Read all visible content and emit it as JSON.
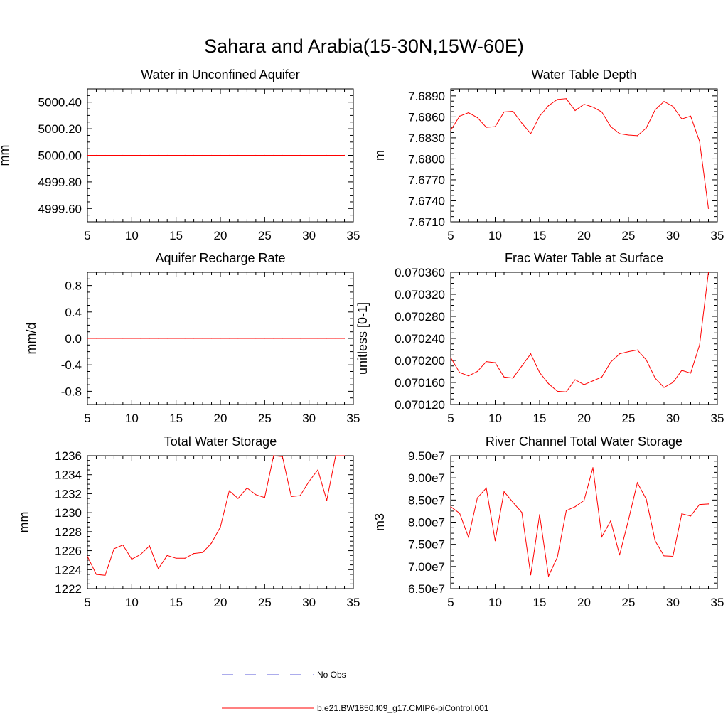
{
  "main_title": "Sahara and Arabia(15-30N,15W-60E)",
  "colors": {
    "series": "#ff0000",
    "obs": "#5a5ad8",
    "axis": "#000000"
  },
  "legend": {
    "obs_label": "No Obs",
    "model_label": "b.e21.BW1850.f09_g17.CMIP6-piControl.001"
  },
  "chart_data": [
    {
      "type": "line",
      "title": "Water in Unconfined Aquifer",
      "ylabel": "mm",
      "xlim": [
        5,
        35
      ],
      "ylim": [
        4999.5,
        5000.5
      ],
      "xticks": [
        5,
        10,
        15,
        20,
        25,
        30,
        35
      ],
      "yticks": [
        4999.6,
        4999.8,
        5000.0,
        5000.2,
        5000.4
      ],
      "ytick_labels": [
        "4999.60",
        "4999.80",
        "5000.00",
        "5000.20",
        "5000.40"
      ],
      "series": [
        {
          "x": [
            5,
            6,
            7,
            8,
            9,
            10,
            11,
            12,
            13,
            14,
            15,
            16,
            17,
            18,
            19,
            20,
            21,
            22,
            23,
            24,
            25,
            26,
            27,
            28,
            29,
            30,
            31,
            32,
            33,
            34
          ],
          "values": [
            5000,
            5000,
            5000,
            5000,
            5000,
            5000,
            5000,
            5000,
            5000,
            5000,
            5000,
            5000,
            5000,
            5000,
            5000,
            5000,
            5000,
            5000,
            5000,
            5000,
            5000,
            5000,
            5000,
            5000,
            5000,
            5000,
            5000,
            5000,
            5000,
            5000
          ]
        }
      ]
    },
    {
      "type": "line",
      "title": "Water Table Depth",
      "ylabel": "m",
      "xlim": [
        5,
        35
      ],
      "ylim": [
        7.671,
        7.69
      ],
      "xticks": [
        5,
        10,
        15,
        20,
        25,
        30,
        35
      ],
      "yticks": [
        7.671,
        7.674,
        7.677,
        7.68,
        7.683,
        7.686,
        7.689
      ],
      "ytick_labels": [
        "7.6710",
        "7.6740",
        "7.6770",
        "7.6800",
        "7.6830",
        "7.6860",
        "7.6890"
      ],
      "series": [
        {
          "x": [
            5,
            6,
            7,
            8,
            9,
            10,
            11,
            12,
            13,
            14,
            15,
            16,
            17,
            18,
            19,
            20,
            21,
            22,
            23,
            24,
            25,
            26,
            27,
            28,
            29,
            30,
            31,
            32,
            33,
            34
          ],
          "values": [
            7.6841,
            7.6861,
            7.6866,
            7.6859,
            7.6845,
            7.6846,
            7.6867,
            7.6868,
            7.6851,
            7.6836,
            7.6861,
            7.6876,
            7.6885,
            7.6886,
            7.6869,
            7.6878,
            7.6874,
            7.6867,
            7.6846,
            7.6836,
            7.6834,
            7.6833,
            7.6844,
            7.687,
            7.6882,
            7.6875,
            7.6857,
            7.6861,
            7.6825,
            7.6729
          ]
        }
      ]
    },
    {
      "type": "line",
      "title": "Aquifer Recharge Rate",
      "ylabel": "mm/d",
      "xlim": [
        5,
        35
      ],
      "ylim": [
        -1.0,
        1.0
      ],
      "xticks": [
        5,
        10,
        15,
        20,
        25,
        30,
        35
      ],
      "yticks": [
        -0.8,
        -0.4,
        0.0,
        0.4,
        0.8
      ],
      "ytick_labels": [
        "-0.8",
        "-0.4",
        "0.0",
        "0.4",
        "0.8"
      ],
      "series": [
        {
          "x": [
            5,
            6,
            7,
            8,
            9,
            10,
            11,
            12,
            13,
            14,
            15,
            16,
            17,
            18,
            19,
            20,
            21,
            22,
            23,
            24,
            25,
            26,
            27,
            28,
            29,
            30,
            31,
            32,
            33,
            34
          ],
          "values": [
            0,
            0,
            0,
            0,
            0,
            0,
            0,
            0,
            0,
            0,
            0,
            0,
            0,
            0,
            0,
            0,
            0,
            0,
            0,
            0,
            0,
            0,
            0,
            0,
            0,
            0,
            0,
            0,
            0,
            0
          ]
        }
      ]
    },
    {
      "type": "line",
      "title": "Frac Water Table at Surface",
      "ylabel": "unitless [0-1]",
      "xlim": [
        5,
        35
      ],
      "ylim": [
        0.07012,
        0.07036
      ],
      "xticks": [
        5,
        10,
        15,
        20,
        25,
        30,
        35
      ],
      "yticks": [
        0.07012,
        0.07016,
        0.0702,
        0.07024,
        0.07028,
        0.07032,
        0.07036
      ],
      "ytick_labels": [
        "0.070120",
        "0.070160",
        "0.070200",
        "0.070240",
        "0.070280",
        "0.070320",
        "0.070360"
      ],
      "series": [
        {
          "x": [
            5,
            6,
            7,
            8,
            9,
            10,
            11,
            12,
            13,
            14,
            15,
            16,
            17,
            18,
            19,
            20,
            21,
            22,
            23,
            24,
            25,
            26,
            27,
            28,
            29,
            30,
            31,
            32,
            33,
            34
          ],
          "values": [
            0.070205,
            0.070178,
            0.070172,
            0.07018,
            0.070198,
            0.070196,
            0.07017,
            0.070168,
            0.07019,
            0.070212,
            0.070178,
            0.070158,
            0.070144,
            0.070143,
            0.070165,
            0.070156,
            0.070163,
            0.07017,
            0.070197,
            0.070212,
            0.070216,
            0.070219,
            0.070201,
            0.070168,
            0.070151,
            0.07016,
            0.070182,
            0.070177,
            0.070228,
            0.07036
          ]
        }
      ]
    },
    {
      "type": "line",
      "title": "Total Water Storage",
      "ylabel": "mm",
      "xlim": [
        5,
        35
      ],
      "ylim": [
        1222,
        1236
      ],
      "xticks": [
        5,
        10,
        15,
        20,
        25,
        30,
        35
      ],
      "yticks": [
        1222,
        1224,
        1226,
        1228,
        1230,
        1232,
        1234,
        1236
      ],
      "ytick_labels": [
        "1222",
        "1224",
        "1226",
        "1228",
        "1230",
        "1232",
        "1234",
        "1236"
      ],
      "series": [
        {
          "x": [
            5,
            6,
            7,
            8,
            9,
            10,
            11,
            12,
            13,
            14,
            15,
            16,
            17,
            18,
            19,
            20,
            21,
            22,
            23,
            24,
            25,
            26,
            27,
            28,
            29,
            30,
            31,
            32,
            33,
            34
          ],
          "values": [
            1225.4,
            1223.5,
            1223.4,
            1226.2,
            1226.6,
            1225.1,
            1225.6,
            1226.5,
            1224.1,
            1225.5,
            1225.2,
            1225.2,
            1225.7,
            1225.8,
            1226.8,
            1228.5,
            1232.3,
            1231.5,
            1232.6,
            1231.9,
            1231.6,
            1236.0,
            1235.9,
            1231.7,
            1231.8,
            1233.3,
            1234.5,
            1231.3,
            1236.0,
            1236.0
          ]
        }
      ]
    },
    {
      "type": "line",
      "title": "River Channel Total Water Storage",
      "ylabel": "m3",
      "xlim": [
        5,
        35
      ],
      "ylim": [
        65000000,
        95000000
      ],
      "xticks": [
        5,
        10,
        15,
        20,
        25,
        30,
        35
      ],
      "yticks": [
        65000000,
        70000000,
        75000000,
        80000000,
        85000000,
        90000000,
        95000000
      ],
      "ytick_labels": [
        "6.50e7",
        "7.00e7",
        "7.50e7",
        "8.00e7",
        "8.50e7",
        "9.00e7",
        "9.50e7"
      ],
      "series": [
        {
          "x": [
            5,
            6,
            7,
            8,
            9,
            10,
            11,
            12,
            13,
            14,
            15,
            16,
            17,
            18,
            19,
            20,
            21,
            22,
            23,
            24,
            25,
            26,
            27,
            28,
            29,
            30,
            31,
            32,
            33,
            34
          ],
          "values": [
            83500000,
            82000000,
            76600000,
            85500000,
            87700000,
            75800000,
            86900000,
            84500000,
            82200000,
            68100000,
            81700000,
            67800000,
            72100000,
            82600000,
            83500000,
            84900000,
            92300000,
            76700000,
            80300000,
            72600000,
            80500000,
            88900000,
            85200000,
            75800000,
            72400000,
            72300000,
            81900000,
            81400000,
            84000000,
            84100000
          ]
        }
      ]
    }
  ]
}
